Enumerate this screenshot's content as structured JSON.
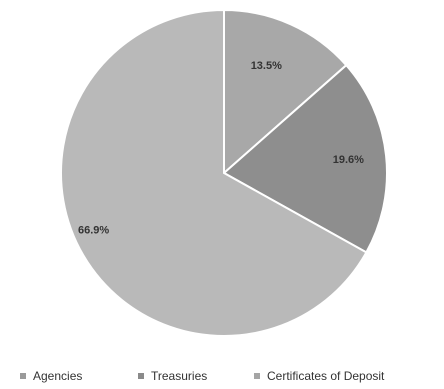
{
  "chart_data": {
    "type": "pie",
    "categories": [
      "Agencies",
      "Treasuries",
      "Certificates of Deposit"
    ],
    "values": [
      13.5,
      19.6,
      66.9
    ],
    "labels": [
      "13.5%",
      "19.6%",
      "66.9%"
    ],
    "colors": [
      "#a8a8a8",
      "#8e8e8e",
      "#b9b9b9"
    ],
    "legend_position": "bottom",
    "start_angle": "12 o'clock, clockwise"
  },
  "legend": {
    "items": [
      {
        "label": "Agencies",
        "color": "#9a9a9a"
      },
      {
        "label": "Treasuries",
        "color": "#8a8a8a"
      },
      {
        "label": "Certificates of Deposit",
        "color": "#a5a5a5"
      }
    ]
  }
}
